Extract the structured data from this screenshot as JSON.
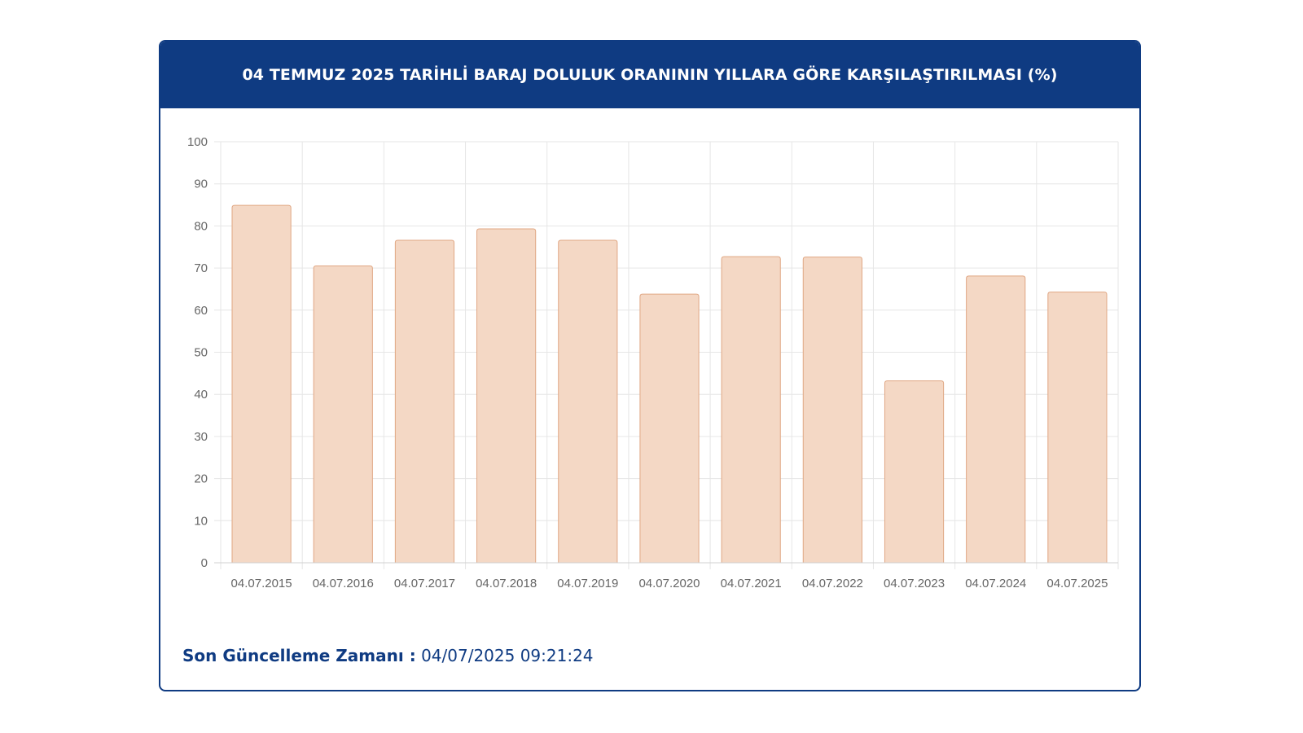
{
  "header": {
    "title": "04 TEMMUZ 2025 TARİHLİ BARAJ DOLULUK ORANININ YILLARA GÖRE KARŞILAŞTIRILMASI (%)"
  },
  "footer": {
    "label": "Son Güncelleme Zamanı :",
    "value": "04/07/2025 09:21:24"
  },
  "colors": {
    "header_bg": "#0f3b82",
    "bar_fill": "#f4d8c5",
    "bar_border": "#e0a784",
    "grid": "#e6e6e6",
    "tick_text": "#666666"
  },
  "chart_data": {
    "type": "bar",
    "title": "",
    "xlabel": "",
    "ylabel": "",
    "categories": [
      "04.07.2015",
      "04.07.2016",
      "04.07.2017",
      "04.07.2018",
      "04.07.2019",
      "04.07.2020",
      "04.07.2021",
      "04.07.2022",
      "04.07.2023",
      "04.07.2024",
      "04.07.2025"
    ],
    "values": [
      84.9,
      70.5,
      76.6,
      79.3,
      76.6,
      63.8,
      72.7,
      72.6,
      43.2,
      68.1,
      64.3
    ],
    "ylim": [
      0,
      100
    ],
    "yticks": [
      0,
      10,
      20,
      30,
      40,
      50,
      60,
      70,
      80,
      90,
      100
    ],
    "grid": true,
    "legend": "none"
  }
}
